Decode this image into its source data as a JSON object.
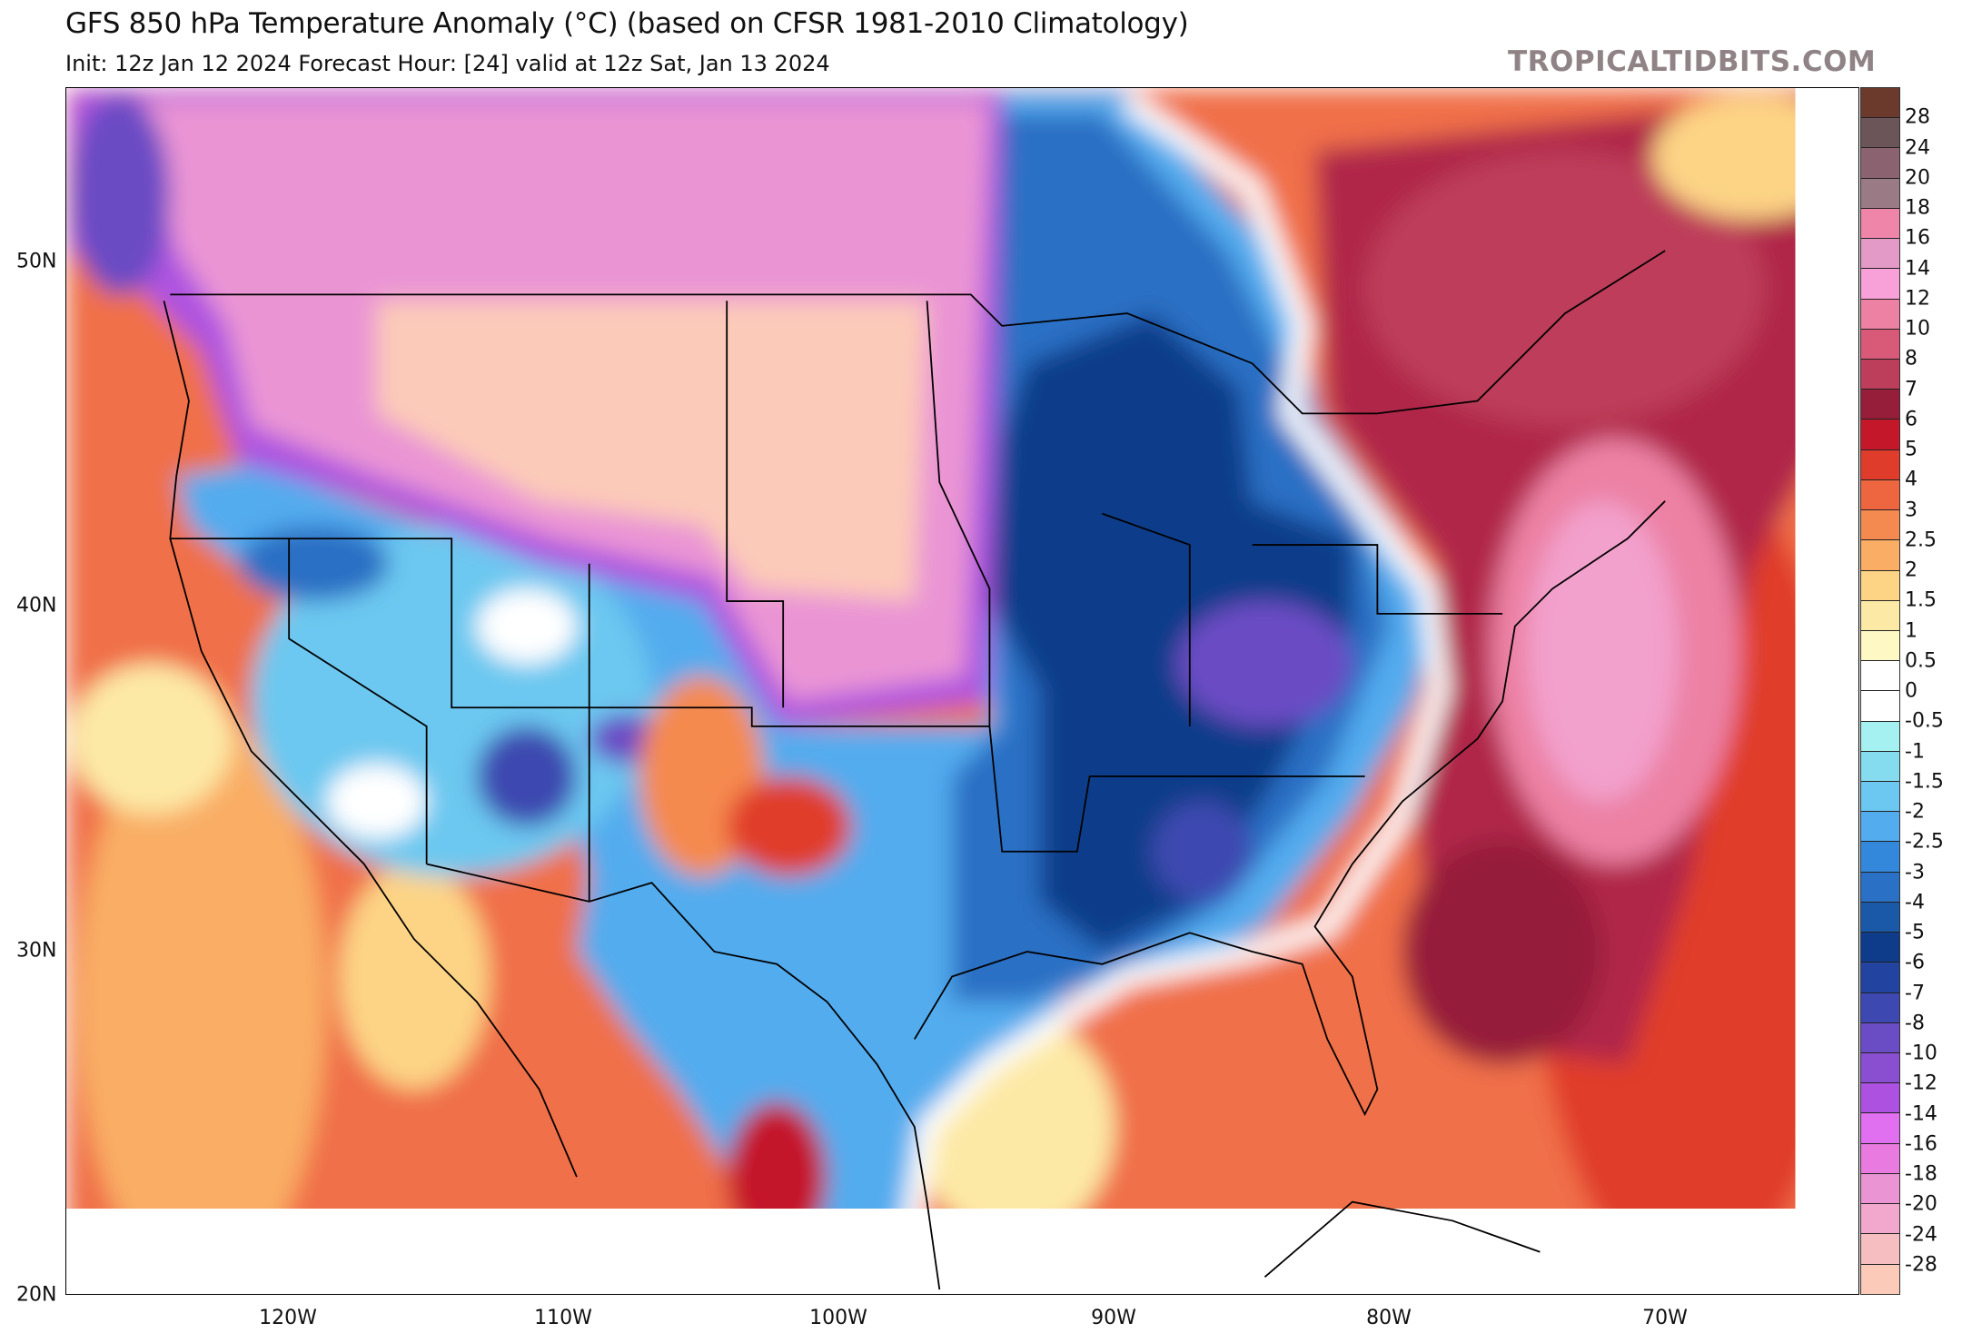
{
  "header": {
    "title": "GFS 850 hPa Temperature Anomaly (°C) (based on CFSR 1981-2010 Climatology)",
    "subtitle": "Init: 12z Jan 12 2024   Forecast Hour: [24]   valid at 12z Sat, Jan 13 2024",
    "watermark": "TROPICALTIDBITS.COM"
  },
  "axes": {
    "lat_labels": [
      "50N",
      "40N",
      "30N",
      "20N"
    ],
    "lon_labels": [
      "120W",
      "110W",
      "100W",
      "90W",
      "80W",
      "70W"
    ]
  },
  "colorbar": {
    "labels": [
      "28",
      "24",
      "20",
      "18",
      "16",
      "14",
      "12",
      "10",
      "8",
      "7",
      "6",
      "5",
      "4",
      "3",
      "2.5",
      "2",
      "1.5",
      "1",
      "0.5",
      "0",
      "-0.5",
      "-1",
      "-1.5",
      "-2",
      "-2.5",
      "-3",
      "-4",
      "-5",
      "-6",
      "-7",
      "-8",
      "-10",
      "-12",
      "-14",
      "-16",
      "-18",
      "-20",
      "-24",
      "-28"
    ],
    "colors": [
      "#6b3a2c",
      "#6b5558",
      "#8a6270",
      "#9a7a85",
      "#ef85a8",
      "#e39ac6",
      "#f7a1d8",
      "#ec81a4",
      "#d85a78",
      "#bd3e5a",
      "#961e3a",
      "#c4182a",
      "#e03c2c",
      "#ee6640",
      "#f58a50",
      "#f9ad65",
      "#fdd486",
      "#fde9a6",
      "#fef8c4",
      "#ffffff",
      "#ffffff",
      "#a5f0f0",
      "#85dcef",
      "#6cc8f0",
      "#52acee",
      "#3488dc",
      "#2a70c4",
      "#1a58a8",
      "#0e3c8a",
      "#2244a0",
      "#3d48b0",
      "#6a4cc4",
      "#8a4ed0",
      "#ad52e0",
      "#e070f0",
      "#e97ae0",
      "#ea94d4",
      "#f2a8cc",
      "#f6bec0",
      "#fccab8"
    ]
  }
}
